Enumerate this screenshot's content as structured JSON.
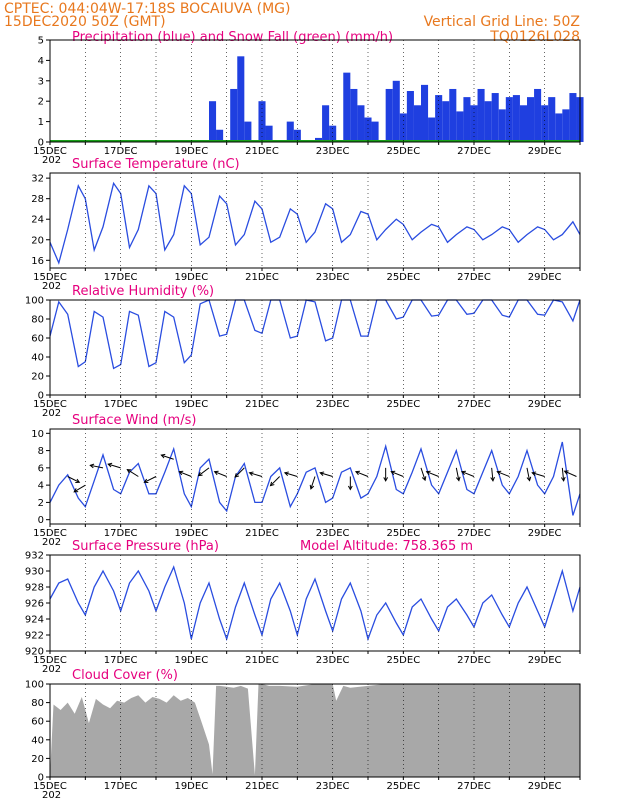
{
  "header": {
    "line1": "CPTEC:   044:04W-17:18S   BOCAIUVA (MG)",
    "line2": "15DEC2020 50Z (GMT)",
    "grid_note": "Vertical Grid Line: 50Z",
    "code": "TQ0126L028"
  },
  "year_fragment": "202",
  "colors": {
    "header": "#e8781e",
    "title": "#e6007e",
    "line": "#2a4de0",
    "precip": "#1f3fe0",
    "snow": "#18a018",
    "cloud": "#a8a8a8",
    "grid": "#000000"
  },
  "x_axis": {
    "type": "time",
    "start": "15DEC",
    "end_day": 30,
    "ticks": [
      "15DEC",
      "17DEC",
      "19DEC",
      "21DEC",
      "23DEC",
      "25DEC",
      "27DEC",
      "29DEC"
    ]
  },
  "chart_data": [
    {
      "type": "bar",
      "key": "precip",
      "title": "Precipitation (blue) and Snow Fall (green) (mm/h)",
      "ylim": [
        0,
        5
      ],
      "yticks": [
        0,
        1,
        2,
        3,
        4,
        5
      ],
      "series": [
        {
          "name": "Precipitation",
          "x": [
            19.6,
            19.8,
            20.0,
            20.2,
            20.4,
            20.6,
            20.8,
            21.0,
            21.2,
            21.4,
            21.6,
            21.8,
            22.0,
            22.2,
            22.4,
            22.6,
            22.8,
            23.0,
            23.2,
            23.4,
            23.6,
            23.8,
            24.0,
            24.2,
            24.4,
            24.6,
            24.8,
            25.0,
            25.2,
            25.4,
            25.6,
            25.8,
            26.0,
            26.2,
            26.4,
            26.6,
            26.8,
            27.0,
            27.2,
            27.4,
            27.6,
            27.8,
            28.0,
            28.2,
            28.4,
            28.6,
            28.8,
            29.0,
            29.2,
            29.4,
            29.6,
            29.8,
            30.0
          ],
          "values": [
            2.0,
            0.6,
            0.0,
            2.6,
            4.2,
            1.0,
            0.0,
            2.0,
            0.8,
            0.0,
            0.0,
            1.0,
            0.6,
            0.0,
            0.0,
            0.2,
            1.8,
            0.8,
            0.0,
            3.4,
            2.6,
            1.8,
            1.2,
            1.0,
            0.0,
            2.6,
            3.0,
            1.4,
            2.5,
            1.8,
            2.8,
            1.2,
            2.3,
            2.0,
            2.6,
            1.5,
            2.2,
            1.8,
            2.6,
            2.0,
            2.4,
            1.6,
            2.2,
            2.3,
            1.8,
            2.2,
            2.6,
            1.8,
            2.2,
            1.4,
            1.6,
            2.4,
            2.2
          ]
        },
        {
          "name": "Snow Fall",
          "x": [],
          "values": []
        }
      ]
    },
    {
      "type": "line",
      "key": "temp",
      "title": "Surface Temperature (nC)",
      "ylim": [
        14.5,
        33
      ],
      "yticks": [
        16,
        20,
        24,
        28,
        32
      ],
      "series": [
        {
          "name": "Temperature",
          "x": [
            15.0,
            15.25,
            15.5,
            15.8,
            16.0,
            16.25,
            16.5,
            16.8,
            17.0,
            17.25,
            17.5,
            17.8,
            18.0,
            18.25,
            18.5,
            18.8,
            19.0,
            19.25,
            19.5,
            19.8,
            20.0,
            20.25,
            20.5,
            20.8,
            21.0,
            21.25,
            21.5,
            21.8,
            22.0,
            22.25,
            22.5,
            22.8,
            23.0,
            23.25,
            23.5,
            23.8,
            24.0,
            24.25,
            24.5,
            24.8,
            25.0,
            25.25,
            25.5,
            25.8,
            26.0,
            26.25,
            26.5,
            26.8,
            27.0,
            27.25,
            27.5,
            27.8,
            28.0,
            28.25,
            28.5,
            28.8,
            29.0,
            29.25,
            29.5,
            29.8,
            30.0
          ],
          "values": [
            19.5,
            15.5,
            22.0,
            30.5,
            28.0,
            18.0,
            22.5,
            31.0,
            29.0,
            18.5,
            22.0,
            30.5,
            29.0,
            18.0,
            21.0,
            30.5,
            29.0,
            19.0,
            20.5,
            28.5,
            27.0,
            19.0,
            21.0,
            27.5,
            26.0,
            19.5,
            20.5,
            26.0,
            25.0,
            19.5,
            21.5,
            27.0,
            26.0,
            19.5,
            21.0,
            25.5,
            25.0,
            20.0,
            22.0,
            24.0,
            23.0,
            20.0,
            21.5,
            23.0,
            22.5,
            19.5,
            21.0,
            22.5,
            22.0,
            20.0,
            21.0,
            22.5,
            22.0,
            19.5,
            21.0,
            22.5,
            22.0,
            20.0,
            21.0,
            23.5,
            21.0
          ]
        }
      ]
    },
    {
      "type": "line",
      "key": "rh",
      "title": "Relative Humidity (%)",
      "ylim": [
        0,
        100
      ],
      "yticks": [
        0,
        20,
        40,
        60,
        80,
        100
      ],
      "series": [
        {
          "name": "Relative Humidity",
          "x": [
            15.0,
            15.25,
            15.5,
            15.8,
            16.0,
            16.25,
            16.5,
            16.8,
            17.0,
            17.25,
            17.5,
            17.8,
            18.0,
            18.25,
            18.5,
            18.8,
            19.0,
            19.25,
            19.5,
            19.8,
            20.0,
            20.25,
            20.5,
            20.8,
            21.0,
            21.25,
            21.5,
            21.8,
            22.0,
            22.25,
            22.5,
            22.8,
            23.0,
            23.25,
            23.5,
            23.8,
            24.0,
            24.25,
            24.5,
            24.8,
            25.0,
            25.25,
            25.5,
            25.8,
            26.0,
            26.25,
            26.5,
            26.8,
            27.0,
            27.25,
            27.5,
            27.8,
            28.0,
            28.25,
            28.5,
            28.8,
            29.0,
            29.25,
            29.5,
            29.8,
            30.0
          ],
          "values": [
            62,
            98,
            85,
            30,
            35,
            88,
            82,
            28,
            32,
            88,
            84,
            30,
            34,
            88,
            82,
            34,
            42,
            96,
            100,
            62,
            64,
            100,
            100,
            68,
            65,
            100,
            100,
            60,
            62,
            100,
            98,
            57,
            60,
            100,
            100,
            62,
            62,
            100,
            100,
            80,
            82,
            100,
            100,
            83,
            84,
            100,
            100,
            85,
            86,
            100,
            100,
            84,
            82,
            100,
            100,
            85,
            84,
            100,
            98,
            78,
            100
          ]
        }
      ]
    },
    {
      "type": "line",
      "key": "wind",
      "title": "Surface Wind (m/s)",
      "ylim": [
        -0.5,
        10.5
      ],
      "yticks": [
        0,
        2,
        4,
        6,
        8,
        10
      ],
      "series": [
        {
          "name": "Wind speed",
          "x": [
            15.0,
            15.25,
            15.5,
            15.8,
            16.0,
            16.25,
            16.5,
            16.8,
            17.0,
            17.25,
            17.5,
            17.8,
            18.0,
            18.25,
            18.5,
            18.8,
            19.0,
            19.25,
            19.5,
            19.8,
            20.0,
            20.25,
            20.5,
            20.8,
            21.0,
            21.25,
            21.5,
            21.8,
            22.0,
            22.25,
            22.5,
            22.8,
            23.0,
            23.25,
            23.5,
            23.8,
            24.0,
            24.25,
            24.5,
            24.8,
            25.0,
            25.25,
            25.5,
            25.8,
            26.0,
            26.25,
            26.5,
            26.8,
            27.0,
            27.25,
            27.5,
            27.8,
            28.0,
            28.25,
            28.5,
            28.8,
            29.0,
            29.25,
            29.5,
            29.8,
            30.0
          ],
          "values": [
            2.0,
            4.0,
            5.2,
            2.5,
            1.5,
            4.5,
            7.5,
            3.5,
            3.0,
            5.5,
            6.5,
            3.0,
            3.0,
            5.5,
            8.2,
            3.0,
            1.5,
            6.0,
            7.0,
            2.0,
            1.0,
            5.0,
            6.5,
            2.0,
            2.0,
            5.0,
            6.0,
            1.5,
            3.0,
            5.5,
            6.0,
            2.0,
            2.5,
            5.5,
            6.0,
            2.5,
            3.0,
            5.0,
            8.5,
            3.5,
            3.0,
            5.5,
            8.2,
            4.0,
            3.0,
            5.5,
            8.0,
            3.5,
            3.0,
            5.5,
            8.0,
            4.0,
            3.0,
            5.0,
            8.0,
            4.0,
            3.0,
            5.0,
            9.0,
            0.5,
            3.0
          ]
        }
      ],
      "vectors": [
        {
          "x": 15.5,
          "dir": [
            1.0,
            -0.5
          ],
          "speed": 5
        },
        {
          "x": 16.0,
          "dir": [
            -1.0,
            -0.6
          ],
          "speed": 4
        },
        {
          "x": 16.5,
          "dir": [
            -1.0,
            0.2
          ],
          "speed": 6
        },
        {
          "x": 17.0,
          "dir": [
            -1.0,
            0.3
          ],
          "speed": 6
        },
        {
          "x": 17.5,
          "dir": [
            -0.8,
            0.5
          ],
          "speed": 5
        },
        {
          "x": 18.0,
          "dir": [
            -1.0,
            -0.5
          ],
          "speed": 5
        },
        {
          "x": 18.5,
          "dir": [
            -0.9,
            0.3
          ],
          "speed": 7
        },
        {
          "x": 19.0,
          "dir": [
            -1.0,
            0.4
          ],
          "speed": 5
        },
        {
          "x": 19.5,
          "dir": [
            -0.8,
            -0.6
          ],
          "speed": 6
        },
        {
          "x": 20.0,
          "dir": [
            -1.0,
            0.4
          ],
          "speed": 5
        },
        {
          "x": 20.5,
          "dir": [
            -0.7,
            -0.7
          ],
          "speed": 6
        },
        {
          "x": 21.0,
          "dir": [
            -1.0,
            0.3
          ],
          "speed": 5
        },
        {
          "x": 21.5,
          "dir": [
            -0.7,
            -0.7
          ],
          "speed": 5
        },
        {
          "x": 22.0,
          "dir": [
            -1.0,
            0.3
          ],
          "speed": 5
        },
        {
          "x": 22.5,
          "dir": [
            -0.3,
            -0.9
          ],
          "speed": 5
        },
        {
          "x": 23.0,
          "dir": [
            -1.0,
            0.3
          ],
          "speed": 5
        },
        {
          "x": 23.5,
          "dir": [
            0.0,
            -1.0
          ],
          "speed": 5
        },
        {
          "x": 24.0,
          "dir": [
            -1.0,
            0.4
          ],
          "speed": 5
        },
        {
          "x": 24.5,
          "dir": [
            0.0,
            -1.0
          ],
          "speed": 6
        },
        {
          "x": 25.0,
          "dir": [
            -1.0,
            0.4
          ],
          "speed": 5
        },
        {
          "x": 25.5,
          "dir": [
            0.3,
            -0.9
          ],
          "speed": 6
        },
        {
          "x": 26.0,
          "dir": [
            -1.0,
            0.4
          ],
          "speed": 5
        },
        {
          "x": 26.5,
          "dir": [
            0.2,
            -1.0
          ],
          "speed": 6
        },
        {
          "x": 27.0,
          "dir": [
            -1.0,
            0.4
          ],
          "speed": 5
        },
        {
          "x": 27.5,
          "dir": [
            0.1,
            -1.0
          ],
          "speed": 6
        },
        {
          "x": 28.0,
          "dir": [
            -1.0,
            0.4
          ],
          "speed": 5
        },
        {
          "x": 28.5,
          "dir": [
            0.2,
            -1.0
          ],
          "speed": 6
        },
        {
          "x": 29.0,
          "dir": [
            -1.0,
            0.3
          ],
          "speed": 5
        },
        {
          "x": 29.5,
          "dir": [
            0.1,
            -1.0
          ],
          "speed": 6
        },
        {
          "x": 29.9,
          "dir": [
            -0.9,
            0.4
          ],
          "speed": 5
        }
      ]
    },
    {
      "type": "line",
      "key": "pres",
      "title": "Surface Pressure (hPa)",
      "subtitle": "Model Altitude: 758.365 m",
      "ylim": [
        920,
        932
      ],
      "yticks": [
        920,
        922,
        924,
        926,
        928,
        930,
        932
      ],
      "series": [
        {
          "name": "Pressure",
          "x": [
            15.0,
            15.25,
            15.5,
            15.8,
            16.0,
            16.25,
            16.5,
            16.8,
            17.0,
            17.25,
            17.5,
            17.8,
            18.0,
            18.25,
            18.5,
            18.8,
            19.0,
            19.25,
            19.5,
            19.8,
            20.0,
            20.25,
            20.5,
            20.8,
            21.0,
            21.25,
            21.5,
            21.8,
            22.0,
            22.25,
            22.5,
            22.8,
            23.0,
            23.25,
            23.5,
            23.8,
            24.0,
            24.25,
            24.5,
            24.8,
            25.0,
            25.25,
            25.5,
            25.8,
            26.0,
            26.25,
            26.5,
            26.8,
            27.0,
            27.25,
            27.5,
            27.8,
            28.0,
            28.25,
            28.5,
            28.8,
            29.0,
            29.25,
            29.5,
            29.8,
            30.0
          ],
          "values": [
            926.5,
            928.5,
            929.0,
            926.0,
            924.5,
            928.0,
            930.0,
            927.5,
            925.0,
            928.5,
            930.0,
            927.5,
            925.0,
            928.0,
            930.5,
            926.0,
            921.5,
            926.0,
            928.5,
            924.0,
            921.5,
            925.5,
            928.5,
            924.5,
            922.0,
            926.5,
            928.5,
            925.0,
            922.0,
            926.5,
            929.0,
            925.0,
            922.5,
            926.5,
            928.5,
            925.0,
            921.5,
            924.5,
            926.0,
            923.5,
            922.0,
            925.5,
            926.5,
            924.0,
            922.5,
            925.5,
            926.5,
            924.5,
            923.0,
            926.0,
            927.0,
            924.5,
            923.0,
            926.0,
            928.0,
            925.0,
            923.0,
            926.5,
            930.0,
            925.0,
            928.0
          ]
        }
      ]
    },
    {
      "type": "area",
      "key": "cloud",
      "title": "Cloud Cover (%)",
      "ylim": [
        0,
        100
      ],
      "yticks": [
        0,
        20,
        40,
        60,
        80,
        100
      ],
      "series": [
        {
          "name": "Cloud Cover",
          "x": [
            15.0,
            15.1,
            15.3,
            15.5,
            15.7,
            15.9,
            16.1,
            16.3,
            16.5,
            16.7,
            16.9,
            17.1,
            17.3,
            17.5,
            17.7,
            17.9,
            18.1,
            18.3,
            18.5,
            18.7,
            18.9,
            19.1,
            19.3,
            19.5,
            19.6,
            19.7,
            19.8,
            20.0,
            20.2,
            20.4,
            20.6,
            20.8,
            20.9,
            21.0,
            21.2,
            21.5,
            22.0,
            22.5,
            23.0,
            23.1,
            23.3,
            23.5,
            24.0,
            24.5,
            25.0,
            26.0,
            27.0,
            28.0,
            29.0,
            30.0
          ],
          "values": [
            2,
            78,
            72,
            80,
            68,
            86,
            58,
            84,
            78,
            74,
            82,
            80,
            85,
            88,
            80,
            86,
            84,
            80,
            88,
            82,
            85,
            80,
            58,
            35,
            3,
            98,
            98,
            97,
            96,
            98,
            95,
            2,
            100,
            100,
            98,
            98,
            97,
            100,
            100,
            82,
            98,
            96,
            98,
            100,
            100,
            100,
            100,
            100,
            100,
            100
          ]
        }
      ]
    }
  ]
}
